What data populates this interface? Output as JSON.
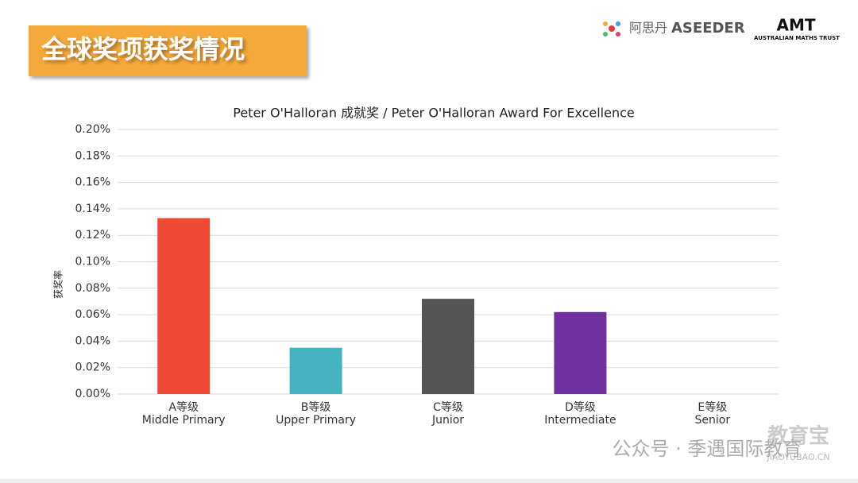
{
  "header": {
    "title": "全球奖项获奖情况",
    "logo_cn": "阿思丹",
    "logo_en": "ASEEDER",
    "amt": "AMT",
    "amt_full": "AUSTRALIAN MATHS TRUST"
  },
  "watermark": {
    "account": "公众号 · 季遇国际教育",
    "brand": "教育宝",
    "site": "JIAOYUBAO.CN"
  },
  "chart_data": {
    "type": "bar",
    "title": "Peter O'Halloran 成就奖 / Peter O'Halloran Award For Excellence",
    "ylabel": "获奖率",
    "categories": [
      [
        "A等级",
        "Middle Primary"
      ],
      [
        "B等级",
        "Upper Primary"
      ],
      [
        "C等级",
        "Junior"
      ],
      [
        "D等级",
        "Intermediate"
      ],
      [
        "E等级",
        "Senior"
      ]
    ],
    "values": [
      0.133,
      0.035,
      0.072,
      0.062,
      0
    ],
    "colors": [
      "#f04a36",
      "#45b3bf",
      "#555555",
      "#7030a0",
      "#7f7f7f"
    ],
    "ylim": [
      0,
      0.2
    ],
    "yticks": [
      {
        "value": 0,
        "label": "0.00%"
      },
      {
        "value": 0.02,
        "label": "0.02%"
      },
      {
        "value": 0.04,
        "label": "0.04%"
      },
      {
        "value": 0.06,
        "label": "0.06%"
      },
      {
        "value": 0.08,
        "label": "0.08%"
      },
      {
        "value": 0.1,
        "label": "0.10%"
      },
      {
        "value": 0.12,
        "label": "0.12%"
      },
      {
        "value": 0.14,
        "label": "0.14%"
      },
      {
        "value": 0.16,
        "label": "0.16%"
      },
      {
        "value": 0.18,
        "label": "0.18%"
      },
      {
        "value": 0.2,
        "label": "0.20%"
      }
    ],
    "grid": true
  }
}
